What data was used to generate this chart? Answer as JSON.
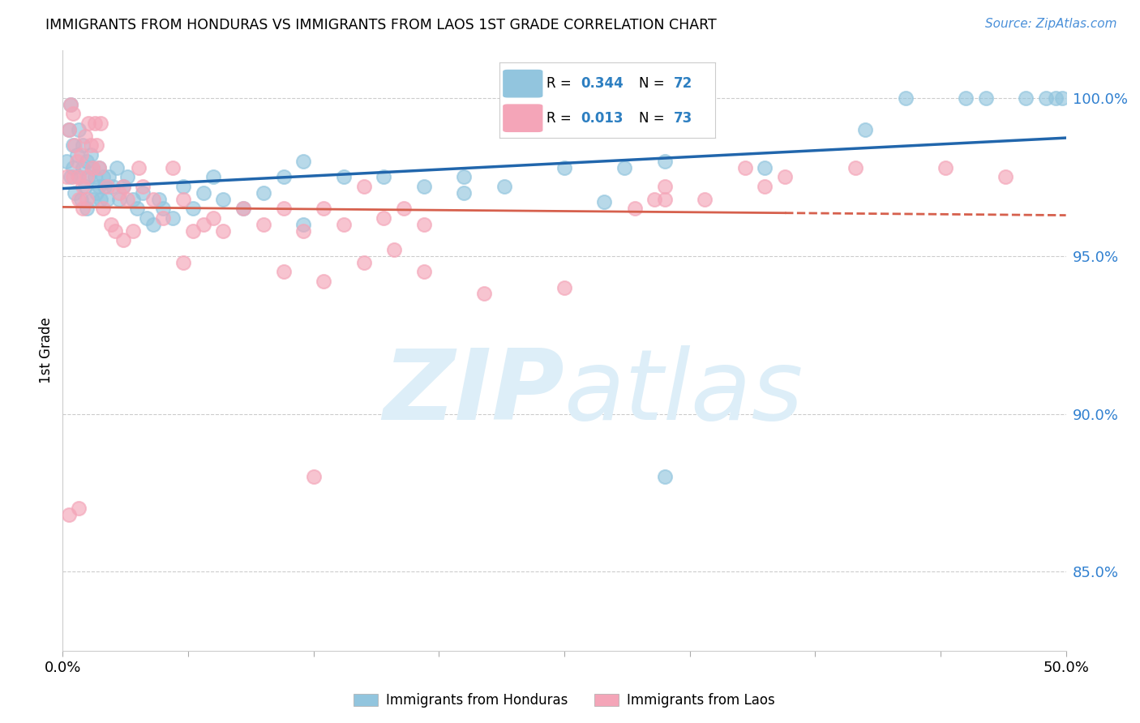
{
  "title": "IMMIGRANTS FROM HONDURAS VS IMMIGRANTS FROM LAOS 1ST GRADE CORRELATION CHART",
  "source": "Source: ZipAtlas.com",
  "ylabel": "1st Grade",
  "ytick_values": [
    0.85,
    0.9,
    0.95,
    1.0
  ],
  "xlim": [
    0.0,
    0.5
  ],
  "ylim": [
    0.825,
    1.015
  ],
  "legend_blue_label": "Immigrants from Honduras",
  "legend_pink_label": "Immigrants from Laos",
  "blue_color": "#92c5de",
  "pink_color": "#f4a5b8",
  "blue_line_color": "#2166ac",
  "pink_line_color": "#d6604d",
  "watermark_zip": "ZIP",
  "watermark_atlas": "atlas",
  "watermark_color": "#ddeef8",
  "blue_x": [
    0.002,
    0.003,
    0.004,
    0.004,
    0.005,
    0.005,
    0.006,
    0.007,
    0.008,
    0.008,
    0.009,
    0.01,
    0.01,
    0.011,
    0.012,
    0.012,
    0.013,
    0.014,
    0.015,
    0.015,
    0.016,
    0.017,
    0.018,
    0.018,
    0.019,
    0.02,
    0.021,
    0.022,
    0.023,
    0.025,
    0.027,
    0.028,
    0.03,
    0.032,
    0.035,
    0.037,
    0.04,
    0.042,
    0.045,
    0.048,
    0.05,
    0.055,
    0.06,
    0.065,
    0.07,
    0.075,
    0.08,
    0.09,
    0.1,
    0.11,
    0.12,
    0.14,
    0.16,
    0.18,
    0.2,
    0.22,
    0.25,
    0.28,
    0.3,
    0.35,
    0.4,
    0.42,
    0.45,
    0.46,
    0.48,
    0.49,
    0.495,
    0.498,
    0.12,
    0.2,
    0.27,
    0.3
  ],
  "blue_y": [
    0.98,
    0.99,
    0.975,
    0.998,
    0.978,
    0.985,
    0.97,
    0.982,
    0.975,
    0.99,
    0.968,
    0.978,
    0.985,
    0.972,
    0.965,
    0.98,
    0.975,
    0.982,
    0.968,
    0.978,
    0.975,
    0.97,
    0.972,
    0.978,
    0.968,
    0.975,
    0.972,
    0.968,
    0.975,
    0.972,
    0.978,
    0.968,
    0.972,
    0.975,
    0.968,
    0.965,
    0.97,
    0.962,
    0.96,
    0.968,
    0.965,
    0.962,
    0.972,
    0.965,
    0.97,
    0.975,
    0.968,
    0.965,
    0.97,
    0.975,
    0.98,
    0.975,
    0.975,
    0.972,
    0.97,
    0.972,
    0.978,
    0.978,
    0.98,
    0.978,
    0.99,
    1.0,
    1.0,
    1.0,
    1.0,
    1.0,
    1.0,
    1.0,
    0.96,
    0.975,
    0.967,
    0.88
  ],
  "pink_x": [
    0.002,
    0.003,
    0.004,
    0.005,
    0.005,
    0.006,
    0.007,
    0.008,
    0.008,
    0.009,
    0.01,
    0.01,
    0.011,
    0.012,
    0.012,
    0.013,
    0.014,
    0.015,
    0.016,
    0.017,
    0.018,
    0.019,
    0.02,
    0.022,
    0.024,
    0.026,
    0.028,
    0.03,
    0.032,
    0.035,
    0.038,
    0.04,
    0.045,
    0.05,
    0.055,
    0.06,
    0.065,
    0.07,
    0.075,
    0.08,
    0.09,
    0.1,
    0.11,
    0.12,
    0.13,
    0.14,
    0.15,
    0.16,
    0.17,
    0.18,
    0.03,
    0.06,
    0.11,
    0.13,
    0.15,
    0.165,
    0.18,
    0.21,
    0.25,
    0.285,
    0.295,
    0.3,
    0.32,
    0.35,
    0.34,
    0.3,
    0.36,
    0.395,
    0.44,
    0.47,
    0.003,
    0.008,
    0.125
  ],
  "pink_y": [
    0.975,
    0.99,
    0.998,
    0.975,
    0.995,
    0.985,
    0.98,
    0.975,
    0.968,
    0.982,
    0.972,
    0.965,
    0.988,
    0.975,
    0.968,
    0.992,
    0.985,
    0.978,
    0.992,
    0.985,
    0.978,
    0.992,
    0.965,
    0.972,
    0.96,
    0.958,
    0.97,
    0.972,
    0.968,
    0.958,
    0.978,
    0.972,
    0.968,
    0.962,
    0.978,
    0.968,
    0.958,
    0.96,
    0.962,
    0.958,
    0.965,
    0.96,
    0.965,
    0.958,
    0.965,
    0.96,
    0.972,
    0.962,
    0.965,
    0.96,
    0.955,
    0.948,
    0.945,
    0.942,
    0.948,
    0.952,
    0.945,
    0.938,
    0.94,
    0.965,
    0.968,
    0.972,
    0.968,
    0.972,
    0.978,
    0.968,
    0.975,
    0.978,
    0.978,
    0.975,
    0.868,
    0.87,
    0.88
  ]
}
